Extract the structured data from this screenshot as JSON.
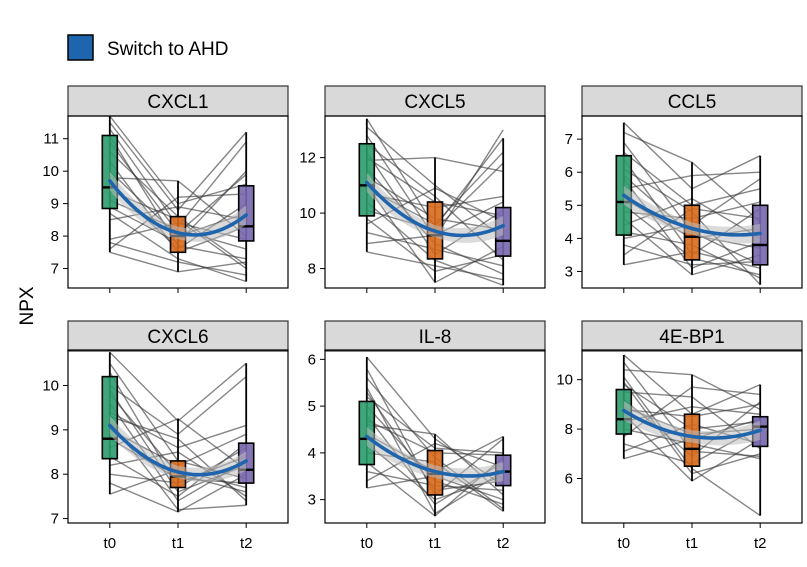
{
  "chart_data": {
    "type": "box_trajectory_facets",
    "ylabel": "NPX",
    "timepoints": [
      "t0",
      "t1",
      "t2"
    ],
    "legend": {
      "label": "Switch to AHD",
      "color": "#1f65ad"
    },
    "box_colors": [
      "#2b9b6b",
      "#d76a1d",
      "#7767ad"
    ],
    "trend_color": "#1f65ad",
    "panels": [
      {
        "title": "CXCL1",
        "ylim": [
          6.4,
          11.7
        ],
        "yticks": [
          7,
          8,
          9,
          10,
          11
        ],
        "boxes": [
          {
            "q1": 8.85,
            "median": 9.5,
            "q3": 11.1,
            "lo": 7.5,
            "hi": 11.7
          },
          {
            "q1": 7.5,
            "median": 8.0,
            "q3": 8.6,
            "lo": 6.9,
            "hi": 9.7
          },
          {
            "q1": 7.85,
            "median": 8.3,
            "q3": 9.55,
            "lo": 6.6,
            "hi": 11.2
          }
        ],
        "trend": [
          9.7,
          8.1,
          8.65
        ],
        "series": [
          [
            11.7,
            9.0,
            9.6
          ],
          [
            11.5,
            8.8,
            11.2
          ],
          [
            11.3,
            8.3,
            10.9
          ],
          [
            11.1,
            7.7,
            7.3
          ],
          [
            10.9,
            8.1,
            9.9
          ],
          [
            10.6,
            8.6,
            7.1
          ],
          [
            10.3,
            7.5,
            8.3
          ],
          [
            10.0,
            8.0,
            8.7
          ],
          [
            9.8,
            9.7,
            8.0
          ],
          [
            9.6,
            7.6,
            9.0
          ],
          [
            9.4,
            8.5,
            7.0
          ],
          [
            9.1,
            8.2,
            7.6
          ],
          [
            8.9,
            7.8,
            10.0
          ],
          [
            8.7,
            7.3,
            6.6
          ],
          [
            8.5,
            8.9,
            8.5
          ],
          [
            7.9,
            8.4,
            7.9
          ],
          [
            7.8,
            7.2,
            6.8
          ],
          [
            7.6,
            9.2,
            9.3
          ],
          [
            7.5,
            6.9,
            7.2
          ]
        ]
      },
      {
        "title": "CXCL5",
        "ylim": [
          7.3,
          13.5
        ],
        "yticks": [
          8,
          10,
          12
        ],
        "boxes": [
          {
            "q1": 9.9,
            "median": 11.0,
            "q3": 12.5,
            "lo": 8.6,
            "hi": 13.4
          },
          {
            "q1": 8.35,
            "median": 9.2,
            "q3": 10.4,
            "lo": 7.5,
            "hi": 12.0
          },
          {
            "q1": 8.45,
            "median": 9.0,
            "q3": 10.2,
            "lo": 7.4,
            "hi": 12.7
          }
        ],
        "trend": [
          11.1,
          9.35,
          9.55
        ],
        "series": [
          [
            13.4,
            9.5,
            12.7
          ],
          [
            13.1,
            11.0,
            9.1
          ],
          [
            12.8,
            9.1,
            13.0
          ],
          [
            12.5,
            10.6,
            8.3
          ],
          [
            12.2,
            8.5,
            10.1
          ],
          [
            11.9,
            12.0,
            11.5
          ],
          [
            11.6,
            8.9,
            7.8
          ],
          [
            11.3,
            9.8,
            9.4
          ],
          [
            11.0,
            7.5,
            8.8
          ],
          [
            10.7,
            10.2,
            10.6
          ],
          [
            10.4,
            8.3,
            7.4
          ],
          [
            10.1,
            9.4,
            11.8
          ],
          [
            9.8,
            7.9,
            8.5
          ],
          [
            9.6,
            10.9,
            9.7
          ],
          [
            9.3,
            8.7,
            8.1
          ],
          [
            8.9,
            9.2,
            10.4
          ],
          [
            8.6,
            8.1,
            7.6
          ],
          [
            12.0,
            10.4,
            9.9
          ],
          [
            10.9,
            9.6,
            12.2
          ]
        ]
      },
      {
        "title": "CCL5",
        "ylim": [
          2.5,
          7.7
        ],
        "yticks": [
          3,
          4,
          5,
          6,
          7
        ],
        "boxes": [
          {
            "q1": 4.1,
            "median": 5.1,
            "q3": 6.5,
            "lo": 3.2,
            "hi": 7.5
          },
          {
            "q1": 3.35,
            "median": 4.05,
            "q3": 5.0,
            "lo": 2.9,
            "hi": 6.3
          },
          {
            "q1": 3.2,
            "median": 3.8,
            "q3": 5.0,
            "lo": 2.6,
            "hi": 6.5
          }
        ],
        "trend": [
          5.3,
          4.3,
          4.15
        ],
        "series": [
          [
            7.5,
            5.5,
            6.5
          ],
          [
            7.2,
            6.3,
            4.5
          ],
          [
            6.9,
            4.2,
            3.2
          ],
          [
            6.6,
            5.0,
            5.5
          ],
          [
            6.4,
            3.5,
            4.9
          ],
          [
            6.1,
            4.8,
            2.6
          ],
          [
            5.8,
            3.1,
            3.9
          ],
          [
            5.5,
            5.9,
            6.0
          ],
          [
            5.2,
            4.0,
            4.3
          ],
          [
            5.0,
            3.4,
            2.9
          ],
          [
            4.8,
            4.6,
            5.1
          ],
          [
            4.6,
            2.9,
            3.5
          ],
          [
            4.4,
            5.2,
            4.0
          ],
          [
            4.2,
            3.8,
            2.8
          ],
          [
            4.0,
            4.4,
            5.8
          ],
          [
            3.8,
            3.2,
            3.3
          ],
          [
            3.5,
            4.9,
            4.6
          ],
          [
            3.2,
            3.6,
            3.1
          ],
          [
            5.9,
            4.1,
            3.7
          ]
        ]
      },
      {
        "title": "CXCL6",
        "ylim": [
          6.9,
          10.8
        ],
        "yticks": [
          7,
          8,
          9,
          10
        ],
        "boxes": [
          {
            "q1": 8.35,
            "median": 8.8,
            "q3": 10.2,
            "lo": 7.55,
            "hi": 10.75
          },
          {
            "q1": 7.7,
            "median": 7.95,
            "q3": 8.3,
            "lo": 7.15,
            "hi": 9.25
          },
          {
            "q1": 7.8,
            "median": 8.1,
            "q3": 8.7,
            "lo": 7.3,
            "hi": 10.5
          }
        ],
        "trend": [
          9.1,
          8.05,
          8.3
        ],
        "series": [
          [
            10.75,
            9.2,
            10.5
          ],
          [
            10.5,
            8.3,
            7.9
          ],
          [
            10.3,
            7.7,
            8.6
          ],
          [
            10.0,
            8.9,
            10.2
          ],
          [
            9.8,
            8.0,
            7.6
          ],
          [
            9.6,
            7.4,
            8.3
          ],
          [
            9.4,
            8.6,
            9.1
          ],
          [
            9.2,
            7.2,
            7.3
          ],
          [
            9.0,
            8.2,
            8.9
          ],
          [
            8.8,
            7.9,
            7.8
          ],
          [
            8.6,
            9.25,
            8.1
          ],
          [
            8.4,
            7.5,
            8.7
          ],
          [
            8.2,
            8.5,
            7.5
          ],
          [
            8.0,
            7.8,
            8.4
          ],
          [
            7.8,
            7.15,
            8.0
          ],
          [
            7.55,
            8.1,
            7.7
          ],
          [
            9.9,
            7.6,
            8.2
          ],
          [
            9.3,
            8.8,
            7.4
          ]
        ]
      },
      {
        "title": "IL-8",
        "ylim": [
          2.5,
          6.2
        ],
        "yticks": [
          3,
          4,
          5,
          6
        ],
        "boxes": [
          {
            "q1": 3.75,
            "median": 4.3,
            "q3": 5.1,
            "lo": 3.25,
            "hi": 6.05
          },
          {
            "q1": 3.1,
            "median": 3.55,
            "q3": 4.05,
            "lo": 2.65,
            "hi": 4.4
          },
          {
            "q1": 3.3,
            "median": 3.6,
            "q3": 3.95,
            "lo": 2.75,
            "hi": 4.35
          }
        ],
        "trend": [
          4.35,
          3.6,
          3.6
        ],
        "series": [
          [
            6.05,
            4.3,
            3.3
          ],
          [
            5.8,
            3.1,
            4.3
          ],
          [
            5.6,
            3.9,
            2.8
          ],
          [
            5.4,
            2.7,
            3.6
          ],
          [
            5.2,
            4.1,
            4.0
          ],
          [
            5.0,
            3.4,
            2.9
          ],
          [
            4.8,
            2.9,
            3.8
          ],
          [
            4.6,
            4.4,
            3.1
          ],
          [
            4.4,
            3.6,
            4.35
          ],
          [
            4.2,
            3.0,
            3.5
          ],
          [
            4.0,
            3.8,
            2.75
          ],
          [
            3.8,
            2.65,
            3.9
          ],
          [
            3.6,
            3.3,
            3.2
          ],
          [
            3.4,
            4.2,
            3.7
          ],
          [
            3.25,
            3.5,
            3.0
          ],
          [
            5.3,
            3.2,
            3.4
          ],
          [
            4.7,
            4.0,
            3.95
          ]
        ]
      },
      {
        "title": "4E-BP1",
        "ylim": [
          4.2,
          11.2
        ],
        "yticks": [
          6,
          8,
          10
        ],
        "boxes": [
          {
            "q1": 7.8,
            "median": 8.4,
            "q3": 9.6,
            "lo": 6.8,
            "hi": 11.0
          },
          {
            "q1": 6.5,
            "median": 7.2,
            "q3": 8.6,
            "lo": 5.9,
            "hi": 10.2
          },
          {
            "q1": 7.3,
            "median": 8.1,
            "q3": 8.5,
            "lo": 4.5,
            "hi": 9.8
          }
        ],
        "trend": [
          8.75,
          7.7,
          7.95
        ],
        "series": [
          [
            11.0,
            8.6,
            9.8
          ],
          [
            10.7,
            7.1,
            6.9
          ],
          [
            10.4,
            10.2,
            8.8
          ],
          [
            10.1,
            6.4,
            4.5
          ],
          [
            9.8,
            8.0,
            8.3
          ],
          [
            9.5,
            9.3,
            7.2
          ],
          [
            9.2,
            6.9,
            9.1
          ],
          [
            8.9,
            7.8,
            8.0
          ],
          [
            8.6,
            5.9,
            7.6
          ],
          [
            8.3,
            8.9,
            8.6
          ],
          [
            8.0,
            7.4,
            6.8
          ],
          [
            7.7,
            9.7,
            9.4
          ],
          [
            7.4,
            6.6,
            8.1
          ],
          [
            7.1,
            8.2,
            7.4
          ],
          [
            6.8,
            7.6,
            8.4
          ],
          [
            9.9,
            6.2,
            7.0
          ],
          [
            8.8,
            8.5,
            9.0
          ]
        ]
      }
    ]
  }
}
